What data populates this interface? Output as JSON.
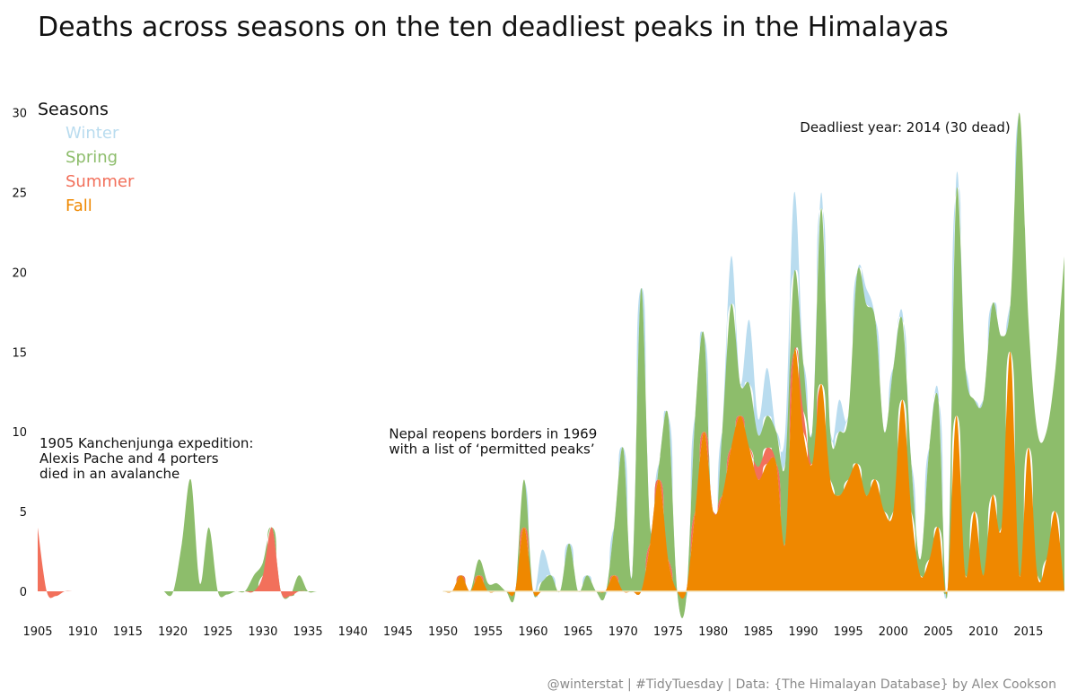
{
  "chart_data": {
    "type": "area",
    "title": "Deaths across seasons on the ten deadliest peaks in the Himalayas",
    "caption": "@winterstat | #TidyTuesday | Data: {The Himalayan Database} by Alex Cookson",
    "xlabel": "",
    "ylabel": "",
    "xlim": [
      1905,
      2019
    ],
    "ylim": [
      -2,
      32
    ],
    "x_ticks": [
      1905,
      1910,
      1915,
      1920,
      1925,
      1930,
      1935,
      1940,
      1945,
      1950,
      1955,
      1960,
      1965,
      1970,
      1975,
      1980,
      1985,
      1990,
      1995,
      2000,
      2005,
      2010,
      2015
    ],
    "y_ticks": [
      0,
      5,
      10,
      15,
      20,
      25,
      30
    ],
    "grid": false,
    "legend": {
      "title": "Seasons",
      "placement": "top-left",
      "items": [
        {
          "label": "Winter",
          "color": "#b9dcef"
        },
        {
          "label": "Spring",
          "color": "#8dbd6b"
        },
        {
          "label": "Summer",
          "color": "#f2705b"
        },
        {
          "label": "Fall",
          "color": "#ef8800"
        }
      ]
    },
    "annotations": [
      {
        "lines": [
          "1905 Kanchenjunga expedition:",
          "Alexis Pache and 4 porters",
          "died in an avalanche"
        ],
        "x": 1905,
        "y": 9
      },
      {
        "lines": [
          "Nepal reopens borders in 1969",
          "with a list of ‘permitted peaks’"
        ],
        "x": 1944,
        "y": 9.6
      },
      {
        "lines": [
          "Deadliest year: 2014 (30 dead)"
        ],
        "x": 2013,
        "y": 28.8
      }
    ],
    "series": [
      {
        "name": "Fall",
        "color": "#ef8800",
        "points": [
          [
            1950,
            0
          ],
          [
            1951,
            0
          ],
          [
            1952,
            1
          ],
          [
            1953,
            0
          ],
          [
            1954,
            1
          ],
          [
            1955,
            0
          ],
          [
            1958,
            0
          ],
          [
            1959,
            4
          ],
          [
            1960,
            0
          ],
          [
            1968,
            0
          ],
          [
            1969,
            1
          ],
          [
            1970,
            0
          ],
          [
            1972,
            0
          ],
          [
            1973,
            3
          ],
          [
            1974,
            7
          ],
          [
            1975,
            2
          ],
          [
            1976,
            0
          ],
          [
            1977,
            0
          ],
          [
            1978,
            5
          ],
          [
            1979,
            10
          ],
          [
            1980,
            5
          ],
          [
            1981,
            6
          ],
          [
            1982,
            9
          ],
          [
            1983,
            11
          ],
          [
            1984,
            9
          ],
          [
            1985,
            7
          ],
          [
            1986,
            8
          ],
          [
            1987,
            8
          ],
          [
            1988,
            3
          ],
          [
            1989,
            15
          ],
          [
            1990,
            10
          ],
          [
            1991,
            8
          ],
          [
            1992,
            13
          ],
          [
            1993,
            7
          ],
          [
            1994,
            6
          ],
          [
            1995,
            7
          ],
          [
            1996,
            8
          ],
          [
            1997,
            6
          ],
          [
            1998,
            7
          ],
          [
            1999,
            5
          ],
          [
            2000,
            5
          ],
          [
            2001,
            12
          ],
          [
            2002,
            5
          ],
          [
            2003,
            1
          ],
          [
            2004,
            2
          ],
          [
            2005,
            4
          ],
          [
            2006,
            0
          ],
          [
            2007,
            11
          ],
          [
            2008,
            1
          ],
          [
            2009,
            5
          ],
          [
            2010,
            1
          ],
          [
            2011,
            6
          ],
          [
            2012,
            4
          ],
          [
            2013,
            15
          ],
          [
            2014,
            1
          ],
          [
            2015,
            9
          ],
          [
            2016,
            1
          ],
          [
            2017,
            2
          ],
          [
            2018,
            5
          ],
          [
            2019,
            0
          ]
        ]
      },
      {
        "name": "Summer",
        "color": "#f2705b",
        "points": [
          [
            1905,
            4
          ],
          [
            1906,
            0
          ],
          [
            1907,
            -0.3
          ],
          [
            1908,
            0
          ],
          [
            1929,
            0
          ],
          [
            1930,
            1
          ],
          [
            1931,
            4
          ],
          [
            1932,
            0
          ],
          [
            1933,
            -0.3
          ],
          [
            1934,
            0
          ],
          [
            1984,
            0
          ],
          [
            1985,
            0.8
          ],
          [
            1986,
            1
          ],
          [
            1987,
            0
          ],
          [
            1989,
            0
          ],
          [
            1990,
            1.3
          ],
          [
            1991,
            0
          ],
          [
            1992,
            0
          ]
        ]
      },
      {
        "name": "Spring",
        "color": "#8dbd6b",
        "points": [
          [
            1919,
            0
          ],
          [
            1920,
            -0.1
          ],
          [
            1921,
            3
          ],
          [
            1922,
            7
          ],
          [
            1923,
            0.5
          ],
          [
            1924,
            4
          ],
          [
            1925,
            0
          ],
          [
            1926,
            -0.2
          ],
          [
            1927,
            0
          ],
          [
            1928,
            0
          ],
          [
            1929,
            1
          ],
          [
            1930,
            0.8
          ],
          [
            1931,
            0
          ],
          [
            1932,
            0
          ],
          [
            1934,
            1
          ],
          [
            1935,
            0
          ],
          [
            1951,
            0
          ],
          [
            1952,
            0
          ],
          [
            1953,
            0
          ],
          [
            1954,
            1
          ],
          [
            1955,
            0.5
          ],
          [
            1956,
            0.5
          ],
          [
            1957,
            0
          ],
          [
            1958,
            -0.2
          ],
          [
            1959,
            3
          ],
          [
            1960,
            0
          ],
          [
            1961,
            0.6
          ],
          [
            1962,
            1
          ],
          [
            1963,
            0
          ],
          [
            1964,
            3
          ],
          [
            1965,
            0
          ],
          [
            1966,
            1
          ],
          [
            1967,
            0
          ],
          [
            1968,
            -0.3
          ],
          [
            1969,
            3
          ],
          [
            1970,
            9
          ],
          [
            1971,
            1
          ],
          [
            1972,
            19
          ],
          [
            1973,
            1
          ],
          [
            1974,
            1
          ],
          [
            1975,
            9
          ],
          [
            1976,
            0
          ],
          [
            1977,
            -0.5
          ],
          [
            1978,
            6
          ],
          [
            1979,
            6
          ],
          [
            1980,
            -2
          ],
          [
            1981,
            4
          ],
          [
            1982,
            9
          ],
          [
            1983,
            2
          ],
          [
            1984,
            4
          ],
          [
            1985,
            2
          ],
          [
            1986,
            2
          ],
          [
            1987,
            2
          ],
          [
            1988,
            5
          ],
          [
            1989,
            5
          ],
          [
            1990,
            3
          ],
          [
            1991,
            2
          ],
          [
            1992,
            11
          ],
          [
            1993,
            3
          ],
          [
            1994,
            4
          ],
          [
            1995,
            4
          ],
          [
            1996,
            12
          ],
          [
            1997,
            12
          ],
          [
            1998,
            10
          ],
          [
            1999,
            5
          ],
          [
            2000,
            9
          ],
          [
            2001,
            5
          ],
          [
            2002,
            3
          ],
          [
            2003,
            1
          ],
          [
            2004,
            7
          ],
          [
            2005,
            8
          ],
          [
            2006,
            -0.2
          ],
          [
            2007,
            14
          ],
          [
            2008,
            13
          ],
          [
            2009,
            7
          ],
          [
            2010,
            11
          ],
          [
            2011,
            12
          ],
          [
            2012,
            12
          ],
          [
            2013,
            3
          ],
          [
            2014,
            29
          ],
          [
            2015,
            8
          ],
          [
            2016,
            9
          ],
          [
            2017,
            8
          ],
          [
            2018,
            9
          ],
          [
            2019,
            21
          ]
        ]
      },
      {
        "name": "Winter",
        "color": "#b9dcef",
        "points": [
          [
            1959,
            0
          ],
          [
            1960,
            0
          ],
          [
            1961,
            2
          ],
          [
            1962,
            0
          ],
          [
            1963,
            0
          ],
          [
            1981,
            0
          ],
          [
            1982,
            3
          ],
          [
            1983,
            0
          ],
          [
            1984,
            4
          ],
          [
            1985,
            1
          ],
          [
            1986,
            3
          ],
          [
            1987,
            0
          ],
          [
            1988,
            2
          ],
          [
            1989,
            5
          ],
          [
            1990,
            0
          ],
          [
            1991,
            0
          ],
          [
            1992,
            1
          ],
          [
            1993,
            0
          ],
          [
            1994,
            2
          ],
          [
            1995,
            0
          ],
          [
            1996,
            0
          ],
          [
            1997,
            1
          ],
          [
            1998,
            0
          ],
          [
            2000,
            0
          ],
          [
            2001,
            0.5
          ],
          [
            2002,
            0
          ],
          [
            2004,
            0
          ],
          [
            2005,
            0.5
          ],
          [
            2006,
            0
          ],
          [
            2007,
            1
          ],
          [
            2008,
            0
          ],
          [
            2013,
            0
          ],
          [
            2014,
            0
          ]
        ]
      }
    ]
  }
}
